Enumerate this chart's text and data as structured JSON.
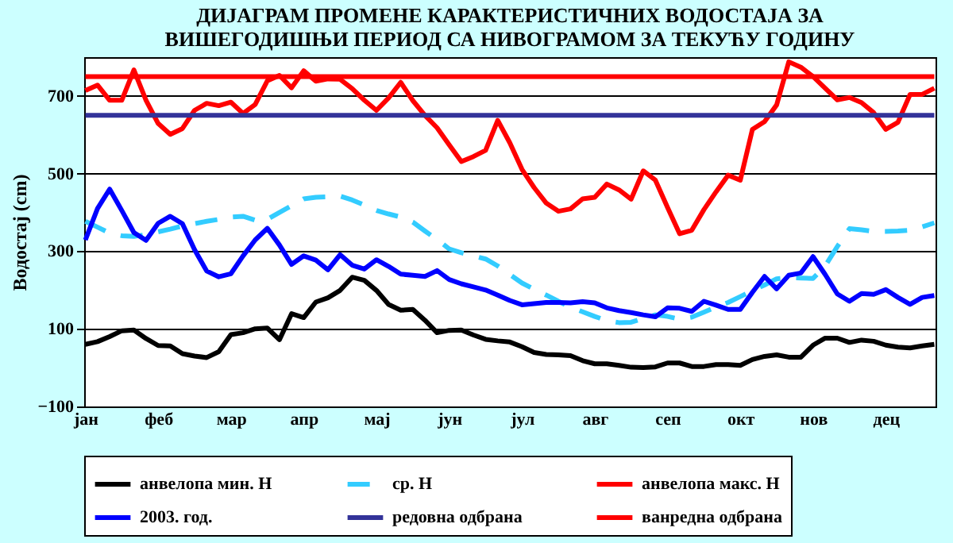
{
  "chart_data": {
    "type": "line",
    "title": [
      "ДИЈАГРАМ ПРОМЕНЕ КАРАКТЕРИСТИЧНИХ ВОДОСТАЈА ЗА",
      "ВИШЕГОДИШЊИ ПЕРИОД СА НИВОГРАМОМ ЗА ТЕКУЋУ ГОДИНУ"
    ],
    "ylabel": "Водостај (cm)",
    "ylim": [
      -100,
      800
    ],
    "yticks": [
      -100,
      100,
      300,
      500,
      700
    ],
    "categories": [
      "јан",
      null,
      null,
      null,
      null,
      null,
      "феб",
      null,
      null,
      null,
      null,
      null,
      "мар",
      null,
      null,
      null,
      null,
      null,
      "апр",
      null,
      null,
      null,
      null,
      null,
      "мај",
      null,
      null,
      null,
      null,
      null,
      "јун",
      null,
      null,
      null,
      null,
      null,
      "јул",
      null,
      null,
      null,
      null,
      null,
      "авг",
      null,
      null,
      null,
      null,
      null,
      "сеп",
      null,
      null,
      null,
      null,
      null,
      "окт",
      null,
      null,
      null,
      null,
      null,
      "нов",
      null,
      null,
      null,
      null,
      null,
      "дец",
      null,
      null,
      null,
      null
    ],
    "grid": "y",
    "legend": "bottom",
    "marker": "none",
    "series": [
      {
        "name": "анвелопа мин. H",
        "color": "#000000",
        "line_style": "solid",
        "values": [
          60,
          67,
          80,
          95,
          97,
          75,
          57,
          56,
          36,
          30,
          26,
          41,
          85,
          90,
          100,
          102,
          72,
          139,
          129,
          169,
          180,
          199,
          233,
          225,
          199,
          163,
          148,
          150,
          122,
          90,
          96,
          97,
          84,
          73,
          69,
          66,
          54,
          39,
          34,
          33,
          31,
          18,
          10,
          10,
          6,
          1,
          0,
          2,
          12,
          12,
          3,
          3,
          8,
          8,
          6,
          21,
          29,
          33,
          27,
          27,
          58,
          76,
          76,
          65,
          71,
          68,
          58,
          53,
          51,
          56,
          60
        ]
      },
      {
        "name": "ср. H",
        "color": "#33ccff",
        "line_style": "dashed",
        "values": [
          377,
          362,
          347,
          340,
          338,
          343,
          350,
          357,
          365,
          371,
          377,
          382,
          388,
          390,
          380,
          382,
          400,
          417,
          435,
          439,
          440,
          442,
          432,
          419,
          405,
          396,
          388,
          375,
          352,
          330,
          306,
          296,
          288,
          280,
          262,
          240,
          218,
          202,
          187,
          171,
          156,
          144,
          132,
          121,
          116,
          117,
          127,
          136,
          132,
          125,
          130,
          143,
          156,
          168,
          183,
          198,
          213,
          229,
          232,
          231,
          230,
          262,
          312,
          358,
          355,
          351,
          351,
          352,
          354,
          363,
          373
        ]
      },
      {
        "name": "анвелопа макс. H",
        "color": "#ff0000",
        "line_style": "solid",
        "values": [
          714,
          728,
          689,
          689,
          767,
          689,
          629,
          601,
          616,
          663,
          681,
          675,
          684,
          655,
          678,
          739,
          753,
          721,
          765,
          738,
          744,
          743,
          719,
          689,
          663,
          695,
          735,
          688,
          650,
          618,
          574,
          531,
          544,
          560,
          637,
          579,
          511,
          464,
          424,
          403,
          409,
          435,
          439,
          473,
          458,
          434,
          507,
          483,
          413,
          345,
          354,
          407,
          453,
          496,
          483,
          614,
          634,
          677,
          788,
          774,
          750,
          720,
          690,
          696,
          683,
          657,
          614,
          632,
          704,
          704,
          720
        ]
      },
      {
        "name": "2003. год.",
        "color": "#0000ff",
        "line_style": "solid",
        "values": [
          329,
          410,
          460,
          405,
          348,
          328,
          372,
          390,
          371,
          304,
          249,
          234,
          242,
          288,
          329,
          359,
          316,
          266,
          288,
          277,
          252,
          291,
          264,
          254,
          278,
          261,
          241,
          238,
          235,
          250,
          227,
          216,
          208,
          200,
          187,
          173,
          162,
          165,
          168,
          168,
          167,
          170,
          167,
          154,
          147,
          142,
          136,
          131,
          154,
          153,
          145,
          171,
          161,
          150,
          150,
          194,
          235,
          203,
          238,
          244,
          286,
          240,
          190,
          171,
          191,
          189,
          201,
          181,
          163,
          181,
          186
        ]
      }
    ],
    "ref_lines": [
      {
        "axis": "y",
        "value": 650,
        "label": "редовна одбрана",
        "color": "#333399"
      },
      {
        "axis": "y",
        "value": 750,
        "label": "ванредна одбрана",
        "color": "#ff0000"
      }
    ]
  }
}
